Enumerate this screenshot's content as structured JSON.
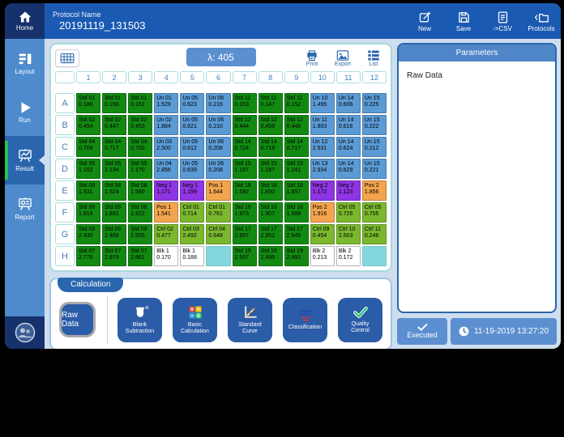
{
  "app": {
    "title_label": "Protocol Name",
    "title_value": "20191119_131503"
  },
  "topbar": {
    "home_label": "Home",
    "actions": [
      {
        "label": "New"
      },
      {
        "label": "Save"
      },
      {
        "label": "->CSV"
      },
      {
        "label": "Protocols"
      }
    ]
  },
  "sidebar": {
    "items": [
      {
        "label": "Layout"
      },
      {
        "label": "Run"
      },
      {
        "label": "Result",
        "active": true
      },
      {
        "label": "Report"
      }
    ]
  },
  "plate_toolbar": {
    "wavelength": "λ: 405",
    "print": "Print",
    "export": "Export",
    "list": "List"
  },
  "plate": {
    "columns": [
      "1",
      "2",
      "3",
      "4",
      "5",
      "6",
      "7",
      "8",
      "9",
      "10",
      "11",
      "12"
    ],
    "rows": [
      {
        "letter": "A",
        "wells": [
          {
            "label": "Std 01",
            "value": "0.186",
            "type": "std"
          },
          {
            "label": "Std 01",
            "value": "0.156",
            "type": "std"
          },
          {
            "label": "Std 01",
            "value": "0.152",
            "type": "std"
          },
          {
            "label": "Un 01",
            "value": "1.529",
            "type": "un"
          },
          {
            "label": "Un 05",
            "value": "0.623",
            "type": "un"
          },
          {
            "label": "Un 06",
            "value": "0.216",
            "type": "un"
          },
          {
            "label": "Std 11",
            "value": "0.153",
            "type": "std"
          },
          {
            "label": "Std 11",
            "value": "0.147",
            "type": "std"
          },
          {
            "label": "Std 11",
            "value": "0.152",
            "type": "std"
          },
          {
            "label": "Un 10",
            "value": "1.495",
            "type": "un"
          },
          {
            "label": "Un 14",
            "value": "0.606",
            "type": "un"
          },
          {
            "label": "Un 15",
            "value": "0.225",
            "type": "un"
          }
        ]
      },
      {
        "letter": "B",
        "wells": [
          {
            "label": "Std 02",
            "value": "0.454",
            "type": "std"
          },
          {
            "label": "Std 02",
            "value": "0.447",
            "type": "std"
          },
          {
            "label": "Std 02",
            "value": "0.453",
            "type": "std"
          },
          {
            "label": "Un 02",
            "value": "1.884",
            "type": "un"
          },
          {
            "label": "Un 05",
            "value": "0.621",
            "type": "un"
          },
          {
            "label": "Un 06",
            "value": "0.210",
            "type": "un"
          },
          {
            "label": "Std 12",
            "value": "0.444",
            "type": "std"
          },
          {
            "label": "Std 12",
            "value": "0.458",
            "type": "std"
          },
          {
            "label": "Std 12",
            "value": "0.446",
            "type": "std"
          },
          {
            "label": "Un 11",
            "value": "1.903",
            "type": "un"
          },
          {
            "label": "Un 14",
            "value": "0.616",
            "type": "un"
          },
          {
            "label": "Un 15",
            "value": "0.222",
            "type": "un"
          }
        ]
      },
      {
        "letter": "C",
        "wells": [
          {
            "label": "Std 04",
            "value": "0.709",
            "type": "std"
          },
          {
            "label": "Std 04",
            "value": "0.717",
            "type": "std"
          },
          {
            "label": "Std 04",
            "value": "0.700",
            "type": "std"
          },
          {
            "label": "Un 03",
            "value": "2.500",
            "type": "un"
          },
          {
            "label": "Un 05",
            "value": "0.612",
            "type": "un"
          },
          {
            "label": "Un 06",
            "value": "0.208",
            "type": "un"
          },
          {
            "label": "Std 14",
            "value": "0.724",
            "type": "std"
          },
          {
            "label": "Std 14",
            "value": "0.719",
            "type": "std"
          },
          {
            "label": "Std 14",
            "value": "0.717",
            "type": "std"
          },
          {
            "label": "Un 12",
            "value": "2.531",
            "type": "un"
          },
          {
            "label": "Un 14",
            "value": "0.624",
            "type": "un"
          },
          {
            "label": "Un 15",
            "value": "0.212",
            "type": "un"
          }
        ]
      },
      {
        "letter": "D",
        "wells": [
          {
            "label": "Std 05",
            "value": "1.152",
            "type": "std"
          },
          {
            "label": "Std 05",
            "value": "1.134",
            "type": "std"
          },
          {
            "label": "Std 05",
            "value": "1.170",
            "type": "std"
          },
          {
            "label": "Un 04",
            "value": "2.856",
            "type": "un"
          },
          {
            "label": "Un 05",
            "value": "0.639",
            "type": "un"
          },
          {
            "label": "Un 06",
            "value": "0.208",
            "type": "un"
          },
          {
            "label": "Std 15",
            "value": "1.197",
            "type": "std"
          },
          {
            "label": "Std 15",
            "value": "1.187",
            "type": "std"
          },
          {
            "label": "Std 15",
            "value": "1.241",
            "type": "std"
          },
          {
            "label": "Un 13",
            "value": "2.934",
            "type": "un"
          },
          {
            "label": "Un 14",
            "value": "0.629",
            "type": "un"
          },
          {
            "label": "Un 15",
            "value": "0.221",
            "type": "un"
          }
        ]
      },
      {
        "letter": "E",
        "wells": [
          {
            "label": "Std 08",
            "value": "1.531",
            "type": "std"
          },
          {
            "label": "Std 08",
            "value": "1.524",
            "type": "std"
          },
          {
            "label": "Std 08",
            "value": "1.560",
            "type": "std"
          },
          {
            "label": "Neg 1",
            "value": "1.171",
            "type": "neg"
          },
          {
            "label": "Neg 1",
            "value": "1.199",
            "type": "neg"
          },
          {
            "label": "Pos 1",
            "value": "1.644",
            "type": "pos"
          },
          {
            "label": "Std 18",
            "value": "1.592",
            "type": "std"
          },
          {
            "label": "Std 18",
            "value": "1.650",
            "type": "std"
          },
          {
            "label": "Std 18",
            "value": "1.657",
            "type": "std"
          },
          {
            "label": "Neg 2",
            "value": "1.172",
            "type": "neg"
          },
          {
            "label": "Neg 2",
            "value": "1.123",
            "type": "neg"
          },
          {
            "label": "Pos 2",
            "value": "1.856",
            "type": "pos"
          }
        ]
      },
      {
        "letter": "F",
        "wells": [
          {
            "label": "Std 06",
            "value": "1.819",
            "type": "std"
          },
          {
            "label": "Std 06",
            "value": "1.891",
            "type": "std"
          },
          {
            "label": "Std 06",
            "value": "1.922",
            "type": "std"
          },
          {
            "label": "Pos 1",
            "value": "1.541",
            "type": "pos"
          },
          {
            "label": "Ctrl 01",
            "value": "0.714",
            "type": "ctrl"
          },
          {
            "label": "Ctrl 01",
            "value": "0.761",
            "type": "ctrl"
          },
          {
            "label": "Std 16",
            "value": "1.973",
            "type": "std"
          },
          {
            "label": "Std 16",
            "value": "1.907",
            "type": "std"
          },
          {
            "label": "Std 16",
            "value": "1.988",
            "type": "std"
          },
          {
            "label": "Pos 2",
            "value": "1.916",
            "type": "pos"
          },
          {
            "label": "Ctrl 05",
            "value": "0.726",
            "type": "ctrl"
          },
          {
            "label": "Ctrl 05",
            "value": "0.705",
            "type": "ctrl"
          }
        ]
      },
      {
        "letter": "G",
        "wells": [
          {
            "label": "Std 09",
            "value": "2.430",
            "type": "std"
          },
          {
            "label": "Std 09",
            "value": "2.468",
            "type": "std"
          },
          {
            "label": "Std 09",
            "value": "2.505",
            "type": "std"
          },
          {
            "label": "Ctrl 02",
            "value": "0.477",
            "type": "ctrl"
          },
          {
            "label": "Ctrl 03",
            "value": "2.492",
            "type": "ctrl"
          },
          {
            "label": "Ctrl 04",
            "value": "0.648",
            "type": "ctrl"
          },
          {
            "label": "Std 17",
            "value": "2.957",
            "type": "std"
          },
          {
            "label": "Std 17",
            "value": "2.952",
            "type": "std"
          },
          {
            "label": "Std 17",
            "value": "2.945",
            "type": "std"
          },
          {
            "label": "Ctrl 09",
            "value": "0.454",
            "type": "ctrl"
          },
          {
            "label": "Ctrl 10",
            "value": "2.503",
            "type": "ctrl"
          },
          {
            "label": "Ctrl 11",
            "value": "0.246",
            "type": "ctrl"
          }
        ]
      },
      {
        "letter": "H",
        "wells": [
          {
            "label": "Std 07",
            "value": "2.776",
            "type": "std"
          },
          {
            "label": "Std 07",
            "value": "2.879",
            "type": "std"
          },
          {
            "label": "Std 07",
            "value": "2.861",
            "type": "std"
          },
          {
            "label": "Blk 1",
            "value": "0.170",
            "type": "blk"
          },
          {
            "label": "Blk 1",
            "value": "0.188",
            "type": "blk"
          },
          {
            "label": "",
            "value": "",
            "type": "empty"
          },
          {
            "label": "Std 19",
            "value": "2.507",
            "type": "std"
          },
          {
            "label": "Std 19",
            "value": "2.495",
            "type": "std"
          },
          {
            "label": "Std 19",
            "value": "2.491",
            "type": "std"
          },
          {
            "label": "Blk 2",
            "value": "0.213",
            "type": "blk"
          },
          {
            "label": "Blk 2",
            "value": "0.172",
            "type": "blk"
          },
          {
            "label": "",
            "value": "",
            "type": "empty"
          }
        ]
      }
    ]
  },
  "well_colors": {
    "std": "#128a12",
    "un": "#5b9bd5",
    "neg": "#8f35e3",
    "pos": "#f2a54e",
    "ctrl": "#7ab82e",
    "blk": "#ffffff",
    "empty": "#82d7dd"
  },
  "calculation": {
    "tab": "Calculation",
    "raw_data": "Raw Data",
    "tools": [
      {
        "label": "Blank\nSubtraction"
      },
      {
        "label": "Basic\nCalculation"
      },
      {
        "label": "Standard\nCurve"
      },
      {
        "label": "Classification"
      },
      {
        "label": "Quality\nControl"
      }
    ]
  },
  "parameters": {
    "header": "Parameters",
    "body": "Raw Data"
  },
  "status": {
    "executed": "Executed",
    "timestamp": "11-19-2019 13:27:20"
  }
}
